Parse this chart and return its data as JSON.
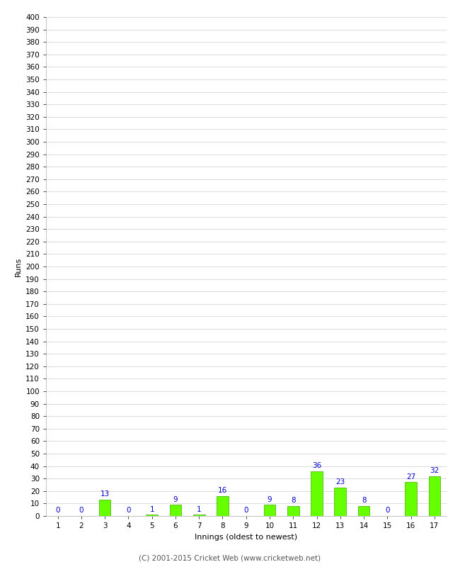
{
  "xlabel": "Innings (oldest to newest)",
  "ylabel": "Runs",
  "categories": [
    1,
    2,
    3,
    4,
    5,
    6,
    7,
    8,
    9,
    10,
    11,
    12,
    13,
    14,
    15,
    16,
    17
  ],
  "values": [
    0,
    0,
    13,
    0,
    1,
    9,
    1,
    16,
    0,
    9,
    8,
    36,
    23,
    8,
    0,
    27,
    32
  ],
  "bar_color": "#66ff00",
  "bar_edge_color": "#44aa00",
  "label_color": "#0000cc",
  "label_fontsize": 7.5,
  "ylim": [
    0,
    400
  ],
  "yticks": [
    0,
    10,
    20,
    30,
    40,
    50,
    60,
    70,
    80,
    90,
    100,
    110,
    120,
    130,
    140,
    150,
    160,
    170,
    180,
    190,
    200,
    210,
    220,
    230,
    240,
    250,
    260,
    270,
    280,
    290,
    300,
    310,
    320,
    330,
    340,
    350,
    360,
    370,
    380,
    390,
    400
  ],
  "grid_color": "#cccccc",
  "background_color": "#ffffff",
  "footer": "(C) 2001-2015 Cricket Web (www.cricketweb.net)",
  "footer_color": "#555555",
  "footer_fontsize": 7.5,
  "axis_label_fontsize": 8,
  "tick_fontsize": 7.5,
  "bar_width": 0.5
}
